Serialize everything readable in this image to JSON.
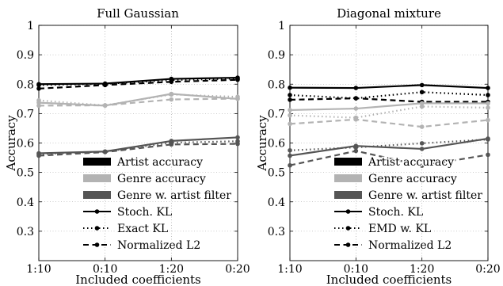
{
  "chart_data": [
    {
      "type": "line",
      "title": "Full Gaussian",
      "xlabel": "Included coefficients",
      "ylabel": "Accuracy",
      "categories": [
        "1:10",
        "0:10",
        "1:20",
        "0:20"
      ],
      "ylim": [
        0.2,
        1.0
      ],
      "yticks": [
        "0.3",
        "0.4",
        "0.5",
        "0.6",
        "0.7",
        "0.8",
        "0.9",
        "1"
      ],
      "grid": true,
      "legend_position": "lower-center",
      "legend": [
        {
          "label": "Artist accuracy",
          "kind": "swatch",
          "color": "#000000"
        },
        {
          "label": "Genre accuracy",
          "kind": "swatch",
          "color": "#b3b3b3"
        },
        {
          "label": "Genre w. artist filter",
          "kind": "swatch",
          "color": "#555555"
        },
        {
          "label": "Stoch. KL",
          "kind": "line",
          "style": "solid"
        },
        {
          "label": "Exact KL",
          "kind": "line",
          "style": "dotted"
        },
        {
          "label": "Normalized L2",
          "kind": "line",
          "style": "dashed"
        }
      ],
      "series": [
        {
          "group": "artist",
          "color": "#000000",
          "style": "solid",
          "values": [
            0.8,
            0.802,
            0.818,
            0.822
          ]
        },
        {
          "group": "artist",
          "color": "#000000",
          "style": "dotted",
          "values": [
            0.797,
            0.801,
            0.814,
            0.819
          ]
        },
        {
          "group": "artist",
          "color": "#000000",
          "style": "dashed",
          "values": [
            0.785,
            0.797,
            0.808,
            0.815
          ]
        },
        {
          "group": "genre",
          "color": "#b3b3b3",
          "style": "solid",
          "values": [
            0.737,
            0.727,
            0.767,
            0.75
          ]
        },
        {
          "group": "genre",
          "color": "#b3b3b3",
          "style": "dotted",
          "values": [
            0.745,
            0.728,
            0.765,
            0.757
          ]
        },
        {
          "group": "genre",
          "color": "#b3b3b3",
          "style": "dashed",
          "values": [
            0.727,
            0.728,
            0.748,
            0.751
          ]
        },
        {
          "group": "genre_filter",
          "color": "#555555",
          "style": "solid",
          "values": [
            0.565,
            0.571,
            0.607,
            0.619
          ]
        },
        {
          "group": "genre_filter",
          "color": "#555555",
          "style": "dotted",
          "values": [
            0.562,
            0.571,
            0.601,
            0.606
          ]
        },
        {
          "group": "genre_filter",
          "color": "#555555",
          "style": "dashed",
          "values": [
            0.557,
            0.569,
            0.595,
            0.597
          ]
        }
      ]
    },
    {
      "type": "line",
      "title": "Diagonal mixture",
      "xlabel": "Included coefficients",
      "ylabel": "Accuracy",
      "categories": [
        "1:10",
        "0:10",
        "1:20",
        "0:20"
      ],
      "ylim": [
        0.2,
        1.0
      ],
      "yticks": [
        "0.3",
        "0.4",
        "0.5",
        "0.6",
        "0.7",
        "0.8",
        "0.9",
        "1"
      ],
      "grid": true,
      "legend_position": "lower-center",
      "legend": [
        {
          "label": "Artist accuracy",
          "kind": "swatch",
          "color": "#000000"
        },
        {
          "label": "Genre accuracy",
          "kind": "swatch",
          "color": "#b3b3b3"
        },
        {
          "label": "Genre w. artist filter",
          "kind": "swatch",
          "color": "#555555"
        },
        {
          "label": "Stoch. KL",
          "kind": "line",
          "style": "solid"
        },
        {
          "label": "EMD w. KL",
          "kind": "line",
          "style": "dotted"
        },
        {
          "label": "Normalized L2",
          "kind": "line",
          "style": "dashed"
        }
      ],
      "series": [
        {
          "group": "artist",
          "color": "#000000",
          "style": "solid",
          "values": [
            0.788,
            0.787,
            0.797,
            0.787
          ]
        },
        {
          "group": "artist",
          "color": "#000000",
          "style": "dotted",
          "values": [
            0.763,
            0.752,
            0.773,
            0.763
          ]
        },
        {
          "group": "artist",
          "color": "#000000",
          "style": "dashed",
          "values": [
            0.747,
            0.752,
            0.74,
            0.74
          ]
        },
        {
          "group": "genre",
          "color": "#b3b3b3",
          "style": "solid",
          "values": [
            0.712,
            0.717,
            0.735,
            0.735
          ]
        },
        {
          "group": "genre",
          "color": "#b3b3b3",
          "style": "dotted",
          "values": [
            0.694,
            0.686,
            0.724,
            0.72
          ]
        },
        {
          "group": "genre",
          "color": "#b3b3b3",
          "style": "dashed",
          "values": [
            0.665,
            0.68,
            0.655,
            0.678
          ]
        },
        {
          "group": "genre_filter",
          "color": "#555555",
          "style": "solid",
          "values": [
            0.557,
            0.59,
            0.58,
            0.615
          ]
        },
        {
          "group": "genre_filter",
          "color": "#555555",
          "style": "dotted",
          "values": [
            0.575,
            0.585,
            0.599,
            0.612
          ]
        },
        {
          "group": "genre_filter",
          "color": "#555555",
          "style": "dashed",
          "values": [
            0.524,
            0.573,
            0.523,
            0.56
          ]
        }
      ]
    }
  ]
}
